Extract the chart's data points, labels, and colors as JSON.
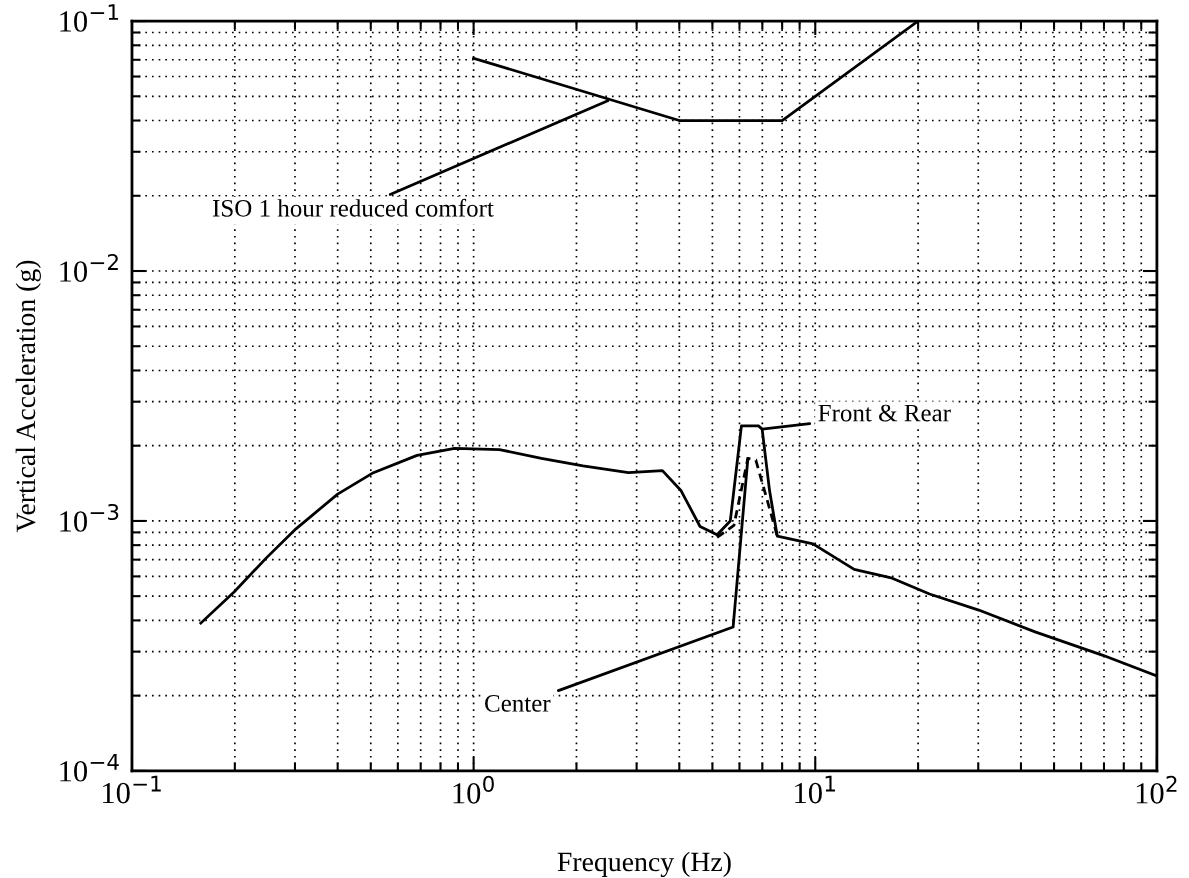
{
  "chart_data": {
    "type": "line",
    "xlabel": "Frequency (Hz)",
    "ylabel": "Vertical Acceleration (g)",
    "log": "xy",
    "grid": true,
    "legend": false,
    "marker": "none",
    "xlim": [
      0.1,
      100
    ],
    "ylim": [
      0.0001,
      0.1
    ],
    "xticks": [
      {
        "value": 0.1,
        "label": "10$^{−1}$"
      },
      {
        "value": 1,
        "label": "10$^{0}$"
      },
      {
        "value": 10,
        "label": "10$^{1}$"
      },
      {
        "value": 100,
        "label": "10$^{2}$"
      }
    ],
    "yticks": [
      {
        "value": 0.0001,
        "label": "10$^{−4}$"
      },
      {
        "value": 0.001,
        "label": "10$^{−3}$"
      },
      {
        "value": 0.01,
        "label": "10$^{−2}$"
      },
      {
        "value": 0.1,
        "label": "10$^{−1}$"
      }
    ],
    "series": [
      {
        "color": "#000000",
        "line_style": "solid",
        "x": [
          1,
          4,
          8,
          20
        ],
        "values": [
          0.071,
          0.04,
          0.04,
          0.1
        ]
      },
      {
        "color": "#000000",
        "line_style": "solid",
        "x": [
          0.159,
          0.199,
          0.247,
          0.302,
          0.4,
          0.509,
          0.683,
          0.88,
          1.19,
          1.58,
          2.09,
          2.84,
          3.57,
          4.05,
          4.6,
          5.16,
          5.64,
          6.08,
          6.82,
          6.99,
          7.35,
          7.74,
          9.85,
          13.0,
          16.8,
          21.6,
          30.1,
          44,
          69.5,
          100
        ],
        "values": [
          0.00039,
          0.00052,
          0.00071,
          0.00093,
          0.00128,
          0.00156,
          0.00183,
          0.00195,
          0.00193,
          0.00178,
          0.00166,
          0.00156,
          0.00159,
          0.00132,
          0.00095,
          0.00088,
          0.001,
          0.0024,
          0.0024,
          0.00233,
          0.00132,
          0.00087,
          0.00081,
          0.00064,
          0.00059,
          0.00051,
          0.00044,
          0.00036,
          0.00029,
          0.00024
        ]
      },
      {
        "color": "#000000",
        "line_style": "dashed",
        "x": [
          5.16,
          5.78,
          6.35,
          6.7,
          7.26,
          7.74
        ],
        "values": [
          0.00086,
          0.00096,
          0.00178,
          0.00175,
          0.00119,
          0.00087
        ]
      }
    ],
    "annotations": [
      {
        "text": "ISO 1 hour reduced comfort",
        "x": 2.47,
        "y": 0.048
      },
      {
        "text": "Front & Rear",
        "x": 6.99,
        "y": 0.00233
      },
      {
        "text": "Center",
        "x": 6.35,
        "y": 0.00178
      }
    ]
  }
}
